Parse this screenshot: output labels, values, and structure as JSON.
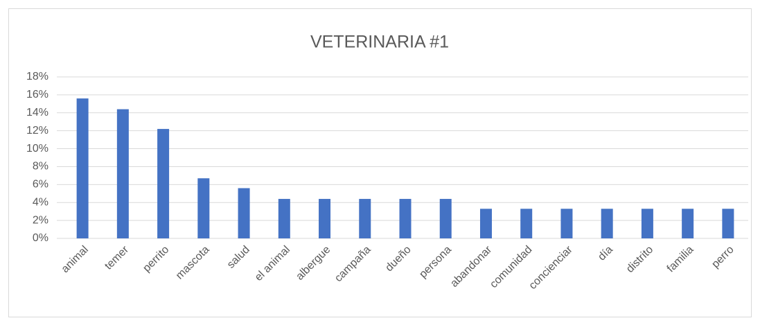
{
  "chart_data": {
    "type": "bar",
    "title": "VETERINARIA #1",
    "categories": [
      "animal",
      "temer",
      "perrito",
      "mascota",
      "salud",
      "el animal",
      "albergue",
      "campaña",
      "dueño",
      "persona",
      "abandonar",
      "comunidad",
      "concienciar",
      "día",
      "distrito",
      "familia",
      "perro"
    ],
    "values": [
      15.6,
      14.4,
      12.2,
      6.7,
      5.6,
      4.4,
      4.4,
      4.4,
      4.4,
      4.4,
      3.3,
      3.3,
      3.3,
      3.3,
      3.3,
      3.3,
      3.3
    ],
    "color": "#4472c4",
    "ylim": [
      0,
      18
    ],
    "yticks": [
      {
        "value": 0,
        "label": "0%"
      },
      {
        "value": 2,
        "label": "2%"
      },
      {
        "value": 4,
        "label": "4%"
      },
      {
        "value": 6,
        "label": "6%"
      },
      {
        "value": 8,
        "label": "8%"
      },
      {
        "value": 10,
        "label": "10%"
      },
      {
        "value": 12,
        "label": "12%"
      },
      {
        "value": 14,
        "label": "14%"
      },
      {
        "value": 16,
        "label": "16%"
      },
      {
        "value": 18,
        "label": "18%"
      }
    ],
    "grid": true
  }
}
